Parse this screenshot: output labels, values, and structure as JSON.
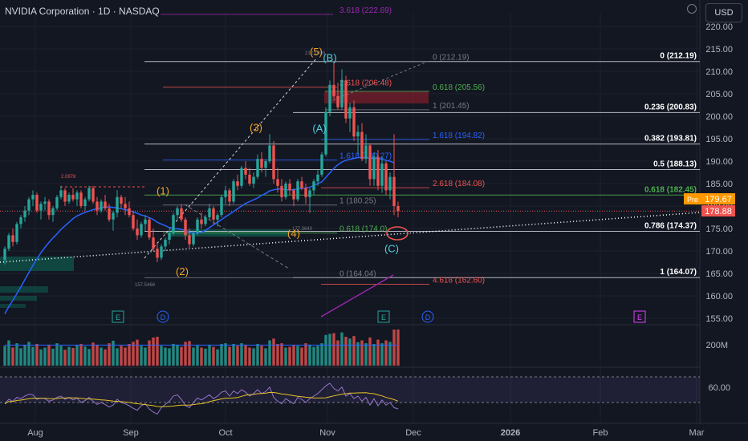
{
  "header": {
    "title": "NVIDIA Corporation · 1D · NASDAQ",
    "currency": "USD"
  },
  "colors": {
    "background": "#131722",
    "bull": "#26a69a",
    "bear": "#ef5350",
    "ma": "#2962ff",
    "wave_orange": "#f5a623",
    "wave_cyan": "#4dd0e1",
    "fib_white": "#d1d4dc",
    "fib_green": "#4caf50",
    "fib_blue": "#2962ff",
    "fib_red": "#ef5350",
    "fib_purple": "#9c27b0",
    "rsi": "#9575cd",
    "rsi_ma": "#e6c229",
    "pre_badge": "#ff9800"
  },
  "chart_data": {
    "type": "candlestick",
    "title": "NVIDIA Corporation · 1D · NASDAQ",
    "ylim": [
      153,
      224
    ],
    "y_ticks": [
      155,
      160,
      165,
      170,
      175,
      180,
      185,
      190,
      195,
      200,
      205,
      210,
      215,
      220
    ],
    "x_ticks": [
      "Aug",
      "Sep",
      "Oct",
      "Nov",
      "Dec",
      "2026",
      "Feb",
      "Mar"
    ],
    "price_labels": {
      "pre": "Pre",
      "pre_price": "179.67",
      "last_price": "178.88"
    },
    "candles": [
      [
        168.0,
        171.0,
        167.0,
        170.5
      ],
      [
        170.5,
        174.0,
        170.0,
        173.5
      ],
      [
        173.5,
        175.0,
        171.0,
        172.0
      ],
      [
        172.0,
        176.5,
        171.5,
        176.0
      ],
      [
        176.0,
        178.0,
        175.0,
        177.5
      ],
      [
        177.5,
        180.0,
        176.5,
        179.0
      ],
      [
        179.0,
        182.0,
        178.0,
        181.5
      ],
      [
        181.5,
        183.5,
        180.0,
        182.5
      ],
      [
        182.5,
        183.0,
        178.5,
        179.0
      ],
      [
        179.0,
        181.0,
        177.0,
        180.5
      ],
      [
        180.5,
        182.0,
        179.0,
        181.0
      ],
      [
        181.0,
        181.5,
        177.0,
        178.0
      ],
      [
        178.0,
        180.0,
        176.5,
        179.5
      ],
      [
        179.5,
        182.5,
        179.0,
        182.0
      ],
      [
        182.0,
        184.5,
        181.5,
        183.5
      ],
      [
        183.5,
        184.0,
        180.0,
        181.0
      ],
      [
        181.0,
        183.0,
        180.5,
        182.5
      ],
      [
        182.5,
        184.0,
        181.0,
        181.5
      ],
      [
        181.5,
        183.5,
        180.0,
        183.0
      ],
      [
        183.0,
        183.5,
        179.5,
        180.0
      ],
      [
        180.0,
        182.0,
        179.0,
        181.5
      ],
      [
        181.5,
        184.5,
        181.0,
        184.0
      ],
      [
        184.0,
        184.5,
        180.5,
        181.0
      ],
      [
        181.0,
        182.0,
        178.0,
        179.0
      ],
      [
        179.0,
        181.5,
        178.5,
        181.0
      ],
      [
        181.0,
        182.5,
        179.0,
        179.5
      ],
      [
        179.5,
        180.5,
        176.5,
        177.0
      ],
      [
        177.0,
        179.0,
        174.5,
        178.5
      ],
      [
        178.5,
        183.5,
        177.5,
        182.0
      ],
      [
        182.0,
        182.5,
        179.5,
        180.5
      ],
      [
        180.5,
        182.0,
        178.0,
        179.5
      ],
      [
        179.5,
        181.0,
        177.5,
        178.0
      ],
      [
        178.0,
        179.0,
        174.5,
        175.0
      ],
      [
        175.0,
        177.0,
        172.5,
        173.5
      ],
      [
        173.5,
        176.5,
        173.0,
        176.0
      ],
      [
        176.0,
        178.0,
        174.5,
        177.0
      ],
      [
        177.0,
        177.5,
        172.5,
        173.0
      ],
      [
        173.0,
        175.0,
        170.0,
        170.5
      ],
      [
        170.5,
        172.0,
        167.5,
        168.5
      ],
      [
        168.5,
        171.5,
        168.0,
        171.0
      ],
      [
        171.0,
        173.0,
        170.0,
        172.5
      ],
      [
        172.5,
        174.5,
        171.5,
        174.0
      ],
      [
        174.0,
        178.5,
        173.5,
        178.0
      ],
      [
        178.0,
        180.0,
        177.0,
        179.5
      ],
      [
        179.5,
        180.5,
        176.5,
        177.0
      ],
      [
        177.0,
        177.5,
        172.5,
        173.5
      ],
      [
        173.5,
        175.0,
        170.5,
        171.5
      ],
      [
        171.5,
        174.5,
        171.0,
        174.0
      ],
      [
        174.0,
        177.5,
        173.5,
        177.0
      ],
      [
        177.0,
        178.5,
        175.0,
        176.0
      ],
      [
        176.0,
        178.0,
        175.5,
        177.5
      ],
      [
        177.5,
        180.5,
        177.0,
        179.5
      ],
      [
        179.5,
        180.0,
        176.0,
        177.0
      ],
      [
        177.0,
        178.5,
        175.5,
        178.0
      ],
      [
        178.0,
        182.5,
        177.5,
        182.0
      ],
      [
        182.0,
        184.5,
        180.5,
        183.5
      ],
      [
        183.5,
        184.0,
        180.0,
        181.0
      ],
      [
        181.0,
        186.0,
        180.5,
        185.5
      ],
      [
        185.5,
        187.0,
        183.5,
        184.5
      ],
      [
        184.5,
        189.0,
        184.0,
        188.5
      ],
      [
        188.5,
        190.0,
        186.0,
        187.0
      ],
      [
        187.0,
        188.5,
        184.5,
        185.0
      ],
      [
        185.0,
        187.5,
        184.0,
        186.5
      ],
      [
        186.5,
        191.5,
        186.0,
        190.5
      ],
      [
        190.5,
        192.0,
        187.5,
        188.5
      ],
      [
        188.5,
        190.5,
        186.5,
        190.0
      ],
      [
        190.0,
        196.0,
        189.5,
        193.5
      ],
      [
        193.5,
        194.5,
        185.0,
        186.0
      ],
      [
        186.0,
        188.5,
        183.0,
        184.5
      ],
      [
        184.5,
        186.0,
        181.0,
        182.0
      ],
      [
        182.0,
        185.5,
        181.5,
        185.0
      ],
      [
        185.0,
        186.0,
        182.5,
        183.5
      ],
      [
        183.5,
        184.0,
        180.0,
        181.5
      ],
      [
        181.5,
        186.0,
        181.0,
        185.5
      ],
      [
        185.5,
        186.5,
        183.5,
        184.0
      ],
      [
        184.0,
        185.0,
        180.5,
        182.0
      ],
      [
        182.0,
        184.0,
        178.5,
        183.5
      ],
      [
        183.5,
        186.0,
        182.5,
        185.5
      ],
      [
        185.5,
        188.0,
        184.5,
        187.0
      ],
      [
        187.0,
        192.0,
        186.5,
        191.5
      ],
      [
        191.5,
        202.0,
        191.0,
        201.0
      ],
      [
        201.0,
        208.0,
        200.0,
        207.0
      ],
      [
        207.0,
        212.2,
        204.0,
        204.5
      ],
      [
        204.5,
        207.5,
        201.5,
        202.0
      ],
      [
        202.0,
        210.5,
        201.5,
        208.0
      ],
      [
        208.0,
        209.0,
        198.5,
        199.5
      ],
      [
        199.5,
        203.0,
        196.5,
        202.0
      ],
      [
        202.0,
        203.5,
        194.5,
        195.5
      ],
      [
        195.5,
        198.0,
        191.5,
        196.5
      ],
      [
        196.5,
        198.5,
        190.0,
        190.5
      ],
      [
        190.5,
        196.0,
        189.5,
        193.5
      ],
      [
        193.5,
        194.0,
        184.5,
        186.0
      ],
      [
        186.0,
        192.0,
        184.5,
        191.0
      ],
      [
        191.0,
        192.5,
        183.5,
        184.5
      ],
      [
        184.5,
        191.0,
        183.0,
        189.5
      ],
      [
        189.5,
        190.0,
        182.5,
        183.5
      ],
      [
        183.5,
        187.5,
        181.5,
        186.5
      ],
      [
        186.5,
        196.0,
        178.0,
        180.0
      ],
      [
        180.0,
        181.0,
        177.5,
        178.88
      ]
    ],
    "series": [
      {
        "name": "",
        "type": "line",
        "values": [
          156.0,
          157.6,
          159.0,
          160.5,
          162.0,
          163.6,
          165.2,
          166.8,
          168.2,
          169.6,
          170.8,
          171.9,
          172.9,
          173.8,
          174.8,
          175.6,
          176.4,
          177.2,
          177.8,
          178.2,
          178.6,
          178.9,
          179.2,
          179.4,
          179.6,
          179.8,
          179.8,
          179.7,
          179.6,
          179.4,
          179.2,
          179.0,
          178.7,
          178.4,
          178.0,
          177.8,
          177.4,
          177.0,
          176.4,
          176.0,
          175.6,
          175.2,
          175.0,
          175.0,
          174.8,
          174.6,
          174.2,
          174.0,
          174.0,
          174.2,
          174.6,
          175.2,
          175.8,
          176.4,
          177.0,
          177.6,
          178.2,
          178.8,
          179.4,
          180.0,
          180.6,
          181.0,
          181.4,
          181.8,
          182.4,
          182.8,
          183.4,
          183.6,
          183.8,
          183.8,
          183.6,
          183.6,
          183.6,
          183.8,
          184.0,
          184.0,
          184.2,
          184.6,
          185.0,
          185.4,
          186.4,
          187.4,
          188.4,
          189.2,
          189.8,
          190.2,
          190.4,
          190.6,
          190.8,
          190.8,
          190.8,
          190.6,
          190.6,
          190.6,
          190.4,
          190.2,
          190.0,
          189.6
        ]
      }
    ],
    "volume": {
      "axis_label": "200M",
      "values": [
        0.55,
        0.7,
        0.5,
        0.62,
        0.48,
        0.57,
        0.66,
        0.52,
        0.6,
        0.45,
        0.5,
        0.58,
        0.47,
        0.62,
        0.55,
        0.44,
        0.52,
        0.49,
        0.57,
        0.6,
        0.53,
        0.46,
        0.64,
        0.58,
        0.5,
        0.45,
        0.62,
        0.69,
        0.48,
        0.55,
        0.5,
        0.6,
        0.66,
        0.72,
        0.55,
        0.5,
        0.7,
        0.78,
        0.8,
        0.55,
        0.5,
        0.48,
        0.6,
        0.58,
        0.52,
        0.66,
        0.68,
        0.5,
        0.56,
        0.5,
        0.47,
        0.58,
        0.52,
        0.45,
        0.6,
        0.62,
        0.52,
        0.6,
        0.55,
        0.62,
        0.58,
        0.5,
        0.48,
        0.6,
        0.55,
        0.48,
        0.7,
        0.75,
        0.6,
        0.62,
        0.5,
        0.52,
        0.57,
        0.55,
        0.5,
        0.62,
        0.58,
        0.52,
        0.55,
        0.62,
        0.85,
        0.88,
        0.9,
        0.7,
        0.92,
        0.8,
        0.75,
        0.82,
        0.65,
        0.7,
        0.62,
        0.78,
        0.6,
        0.72,
        0.62,
        0.7,
        0.66,
        1.0,
        1.0
      ]
    },
    "rsi": {
      "axis_label": "60.00",
      "values": [
        48,
        55,
        52,
        58,
        56,
        60,
        63,
        62,
        55,
        57,
        56,
        52,
        54,
        58,
        60,
        55,
        58,
        54,
        57,
        50,
        53,
        58,
        52,
        47,
        50,
        47,
        43,
        46,
        55,
        50,
        48,
        45,
        41,
        38,
        45,
        48,
        40,
        35,
        32,
        42,
        47,
        52,
        60,
        62,
        55,
        45,
        42,
        50,
        57,
        54,
        58,
        62,
        56,
        60,
        66,
        68,
        60,
        68,
        64,
        70,
        66,
        60,
        64,
        70,
        64,
        67,
        74,
        58,
        52,
        48,
        56,
        52,
        48,
        58,
        55,
        50,
        56,
        60,
        64,
        70,
        76,
        80,
        72,
        68,
        74,
        60,
        64,
        56,
        60,
        52,
        58,
        46,
        56,
        45,
        54,
        46,
        50,
        42,
        40
      ]
    },
    "fib_right": [
      {
        "label": "0 (212.19)",
        "value": 212.19
      },
      {
        "label": "0.236 (200.83)",
        "value": 200.83
      },
      {
        "label": "0.382 (193.81)",
        "value": 193.81
      },
      {
        "label": "0.5 (188.13)",
        "value": 188.13
      },
      {
        "label": "0.618 (182.45)",
        "value": 182.45
      },
      {
        "label": "0.786 (174.37)",
        "value": 174.37
      },
      {
        "label": "1 (164.07)",
        "value": 164.07
      }
    ],
    "fib_ext": [
      {
        "label": "3.618 (222.69)",
        "value": 222.69
      },
      {
        "label": "0 (212.19)",
        "value": 212.19
      },
      {
        "label": "2.618 (206.48)",
        "value": 206.48
      },
      {
        "label": "0.618 (205.56)",
        "value": 205.56
      },
      {
        "label": "1 (201.45)",
        "value": 201.45
      },
      {
        "label": "1.618 (194.82)",
        "value": 194.82
      },
      {
        "label": "1.618 (190.27)",
        "value": 190.27
      },
      {
        "label": "2.618 (184.08)",
        "value": 184.08
      },
      {
        "label": "1 (180.25)",
        "value": 180.25
      },
      {
        "label": "0.618 (174.0)",
        "value": 174.0
      },
      {
        "label": "0 (164.04)",
        "value": 164.04
      },
      {
        "label": "4.618 (162.60)",
        "value": 162.6
      }
    ],
    "waves": [
      {
        "label": "(1)",
        "price": 182.6
      },
      {
        "label": "(2)",
        "price": 164.6
      },
      {
        "label": "(3)",
        "price": 196.7
      },
      {
        "label": "(4)",
        "price": 173.1
      },
      {
        "label": "(5)",
        "price": 213.6
      },
      {
        "label": "(B)",
        "price": 212.2
      },
      {
        "label": "(A)",
        "price": 196.5
      },
      {
        "label": "(C)",
        "price": 169.7
      }
    ],
    "tiny_labels": [
      "2.0978",
      "157.5466",
      "177.3640",
      "212.1900"
    ],
    "events": [
      "E",
      "D",
      "E",
      "D",
      "E"
    ]
  }
}
